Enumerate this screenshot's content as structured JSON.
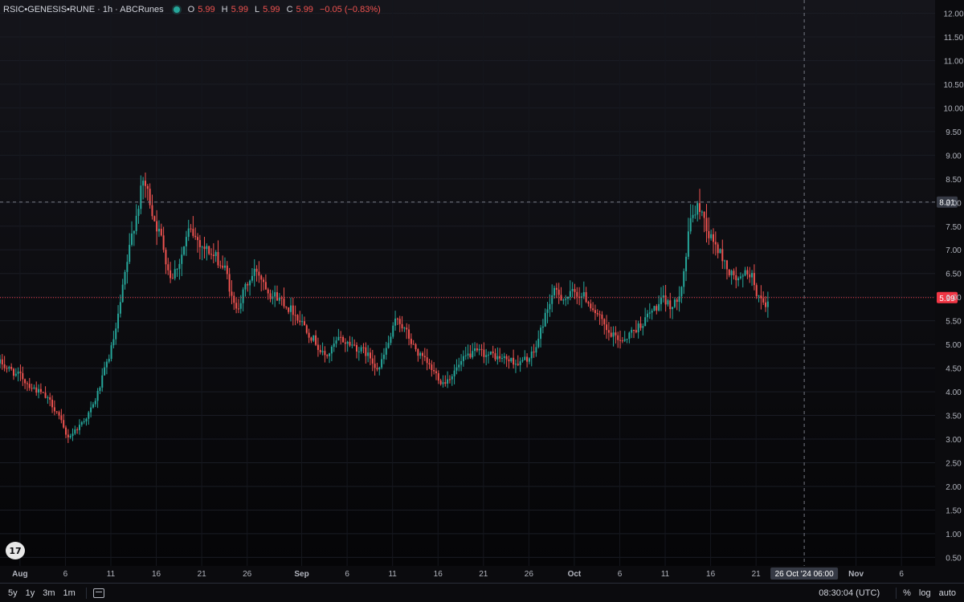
{
  "header": {
    "symbol": "RSIC•GENESIS•RUNE · 1h · ABCRunes",
    "o_label": "O",
    "o_value": "5.99",
    "h_label": "H",
    "h_value": "5.99",
    "l_label": "L",
    "l_value": "5.99",
    "c_label": "C",
    "c_value": "5.99",
    "change": "−0.05 (−0.83%)"
  },
  "colors": {
    "background": "#0b0b0e",
    "up": "#26a69a",
    "down": "#ef5350",
    "last_price": "#f23645",
    "crosshair_label": "#363a45",
    "text": "#d1d4dc"
  },
  "toolbar": {
    "ranges": [
      "5y",
      "1y",
      "3m",
      "1m"
    ],
    "calendar_icon": "calendar-icon",
    "clock": "08:30:04 (UTC)",
    "percent_label": "%",
    "log_label": "log",
    "auto_label": "auto"
  },
  "crosshair": {
    "price_label": "8.01",
    "time_label": "26 Oct '24  06:00"
  },
  "last_price_label": "5.99",
  "chart_data": {
    "type": "candlestick",
    "x_tick_labels": [
      "Aug",
      "6",
      "11",
      "16",
      "21",
      "26",
      "Sep",
      "6",
      "11",
      "16",
      "21",
      "26",
      "Oct",
      "6",
      "11",
      "16",
      "21",
      "Nov",
      "6"
    ],
    "y_tick_labels": [
      "12.00",
      "11.50",
      "11.00",
      "10.50",
      "10.00",
      "9.50",
      "9.00",
      "8.50",
      "8.00",
      "7.50",
      "7.00",
      "6.50",
      "6.00",
      "5.50",
      "5.00",
      "4.50",
      "4.00",
      "3.50",
      "3.00",
      "2.50",
      "2.00",
      "1.50",
      "1.00",
      "0.50"
    ],
    "y_range": [
      0.32,
      12.28
    ],
    "x_day_range": [
      -2.2,
      100.7
    ],
    "x_day_ticks": [
      0,
      5,
      10,
      15,
      20,
      25,
      31,
      36,
      41,
      46,
      51,
      56,
      61,
      66,
      71,
      76,
      81,
      92,
      97
    ],
    "price_path": [
      [
        -2.2,
        4.6
      ],
      [
        0,
        4.3
      ],
      [
        2,
        4.0
      ],
      [
        4,
        3.6
      ],
      [
        5,
        3.0
      ],
      [
        6.5,
        3.3
      ],
      [
        8,
        3.7
      ],
      [
        9.5,
        4.6
      ],
      [
        10.5,
        5.3
      ],
      [
        11.5,
        6.5
      ],
      [
        12.5,
        7.6
      ],
      [
        13.5,
        8.5
      ],
      [
        14.5,
        7.8
      ],
      [
        15.5,
        7.2
      ],
      [
        16.5,
        6.4
      ],
      [
        17.5,
        6.8
      ],
      [
        18.5,
        7.4
      ],
      [
        19.5,
        7.2
      ],
      [
        21,
        6.9
      ],
      [
        22.5,
        6.6
      ],
      [
        23.5,
        5.7
      ],
      [
        25,
        6.3
      ],
      [
        26,
        6.6
      ],
      [
        27.5,
        6.1
      ],
      [
        29,
        5.9
      ],
      [
        30.5,
        5.6
      ],
      [
        32,
        5.2
      ],
      [
        33.5,
        4.7
      ],
      [
        35,
        5.1
      ],
      [
        36.5,
        5.0
      ],
      [
        38,
        4.8
      ],
      [
        39.5,
        4.5
      ],
      [
        41.5,
        5.6
      ],
      [
        43,
        5.0
      ],
      [
        44.5,
        4.6
      ],
      [
        46.5,
        4.2
      ],
      [
        48,
        4.5
      ],
      [
        49.5,
        4.8
      ],
      [
        51,
        4.8
      ],
      [
        53,
        4.7
      ],
      [
        55,
        4.6
      ],
      [
        56.5,
        4.8
      ],
      [
        57.5,
        5.5
      ],
      [
        58.5,
        6.1
      ],
      [
        60,
        6.0
      ],
      [
        61.5,
        6.1
      ],
      [
        63,
        5.8
      ],
      [
        64.5,
        5.2
      ],
      [
        66,
        5.1
      ],
      [
        67.5,
        5.3
      ],
      [
        69,
        5.6
      ],
      [
        70.5,
        5.9
      ],
      [
        72,
        5.8
      ],
      [
        73,
        6.6
      ],
      [
        73.8,
        7.8
      ],
      [
        74.8,
        7.9
      ],
      [
        75.8,
        7.3
      ],
      [
        77,
        6.9
      ],
      [
        78,
        6.5
      ],
      [
        79.2,
        6.3
      ],
      [
        80.2,
        6.6
      ],
      [
        81,
        6.1
      ],
      [
        82,
        5.6
      ],
      [
        82.5,
        5.99
      ]
    ],
    "crosshair": {
      "x_day": 86.3,
      "price": 8.01
    },
    "last_price": 5.99
  }
}
